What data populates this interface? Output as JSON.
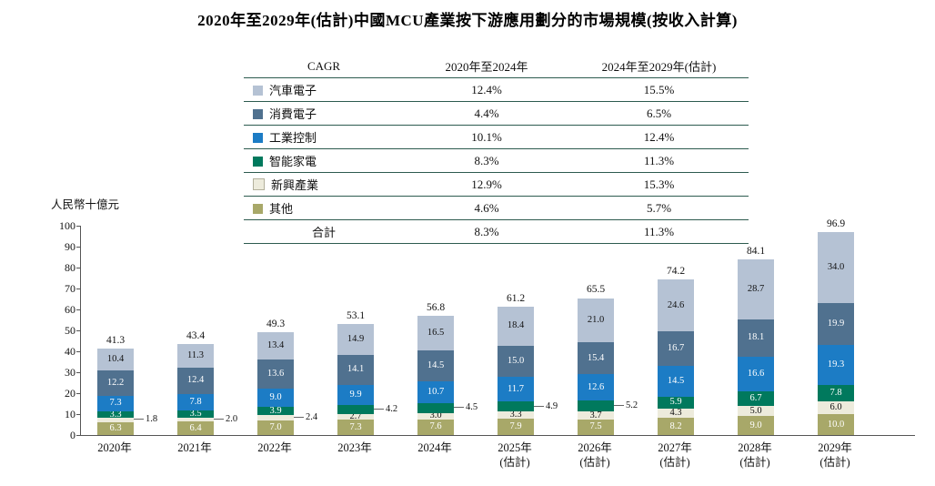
{
  "title": "2020年至2029年(估計)中國MCU產業按下游應用劃分的市場規模(按收入計算)",
  "table": {
    "headers": [
      "CAGR",
      "2020年至2024年",
      "2024年至2029年(估計)"
    ],
    "rows": [
      {
        "label": "汽車電子",
        "color": "#b5c2d4",
        "cagr_2020_2024": "12.4%",
        "cagr_2024_2029": "15.5%"
      },
      {
        "label": "消費電子",
        "color": "#50718f",
        "cagr_2020_2024": "4.4%",
        "cagr_2024_2029": "6.5%"
      },
      {
        "label": "工業控制",
        "color": "#1c7cc5",
        "cagr_2020_2024": "10.1%",
        "cagr_2024_2029": "12.4%"
      },
      {
        "label": "智能家電",
        "color": "#00795d",
        "cagr_2020_2024": "8.3%",
        "cagr_2024_2029": "11.3%"
      },
      {
        "label": "新興產業",
        "color": "#edebdc",
        "swatch_border": "#b3b09c",
        "cagr_2020_2024": "12.9%",
        "cagr_2024_2029": "15.3%"
      },
      {
        "label": "其他",
        "color": "#a8a869",
        "cagr_2020_2024": "4.6%",
        "cagr_2024_2029": "5.7%"
      },
      {
        "label": "合計",
        "color": null,
        "cagr_2020_2024": "8.3%",
        "cagr_2024_2029": "11.3%"
      }
    ]
  },
  "chart_data": {
    "type": "bar",
    "stacked": true,
    "title": "2020年至2029年(估計)中國MCU產業按下游應用劃分的市場規模(按收入計算)",
    "xlabel": "",
    "ylabel": "人民幣十億元",
    "ylim": [
      0,
      100
    ],
    "ytick_step": 10,
    "grid": false,
    "legend_position": "table-above-chart",
    "categories": [
      "2020年",
      "2021年",
      "2022年",
      "2023年",
      "2024年",
      "2025年",
      "2026年",
      "2027年",
      "2028年",
      "2029年"
    ],
    "category_sublabels": [
      "",
      "",
      "",
      "",
      "",
      "(估計)",
      "(估計)",
      "(估計)",
      "(估計)",
      "(估計)"
    ],
    "totals": [
      41.3,
      43.4,
      49.3,
      53.1,
      56.8,
      61.2,
      65.5,
      74.2,
      84.1,
      96.9
    ],
    "stack_order": "bottom_to_top",
    "series": [
      {
        "name": "其他",
        "color": "#a8a869",
        "text_color": "#ffffff",
        "values": [
          6.3,
          6.4,
          7.0,
          7.3,
          7.6,
          7.9,
          7.5,
          8.2,
          9.0,
          10.0
        ]
      },
      {
        "name": "新興產業",
        "color": "#edebdc",
        "text_color": "#111111",
        "values": [
          1.8,
          2.0,
          2.4,
          2.7,
          3.0,
          3.3,
          3.7,
          4.3,
          5.0,
          6.0
        ],
        "outside_label_indices": [
          0,
          1,
          2
        ]
      },
      {
        "name": "智能家電",
        "color": "#00795d",
        "text_color": "#ffffff",
        "values": [
          3.3,
          3.5,
          3.9,
          4.2,
          4.5,
          4.9,
          5.2,
          5.9,
          6.7,
          7.8
        ],
        "outside_label_indices": [
          3,
          4,
          5,
          6
        ]
      },
      {
        "name": "工業控制",
        "color": "#1c7cc5",
        "text_color": "#ffffff",
        "values": [
          7.3,
          7.8,
          9.0,
          9.9,
          10.7,
          11.7,
          12.6,
          14.5,
          16.6,
          19.3
        ]
      },
      {
        "name": "消費電子",
        "color": "#50718f",
        "text_color": "#ffffff",
        "values": [
          12.2,
          12.4,
          13.6,
          14.1,
          14.5,
          15.0,
          15.4,
          16.7,
          18.1,
          19.9
        ]
      },
      {
        "name": "汽車電子",
        "color": "#b5c2d4",
        "text_color": "#111111",
        "values": [
          10.4,
          11.3,
          13.4,
          14.9,
          16.5,
          18.4,
          21.0,
          24.6,
          28.7,
          34.0
        ]
      }
    ]
  }
}
